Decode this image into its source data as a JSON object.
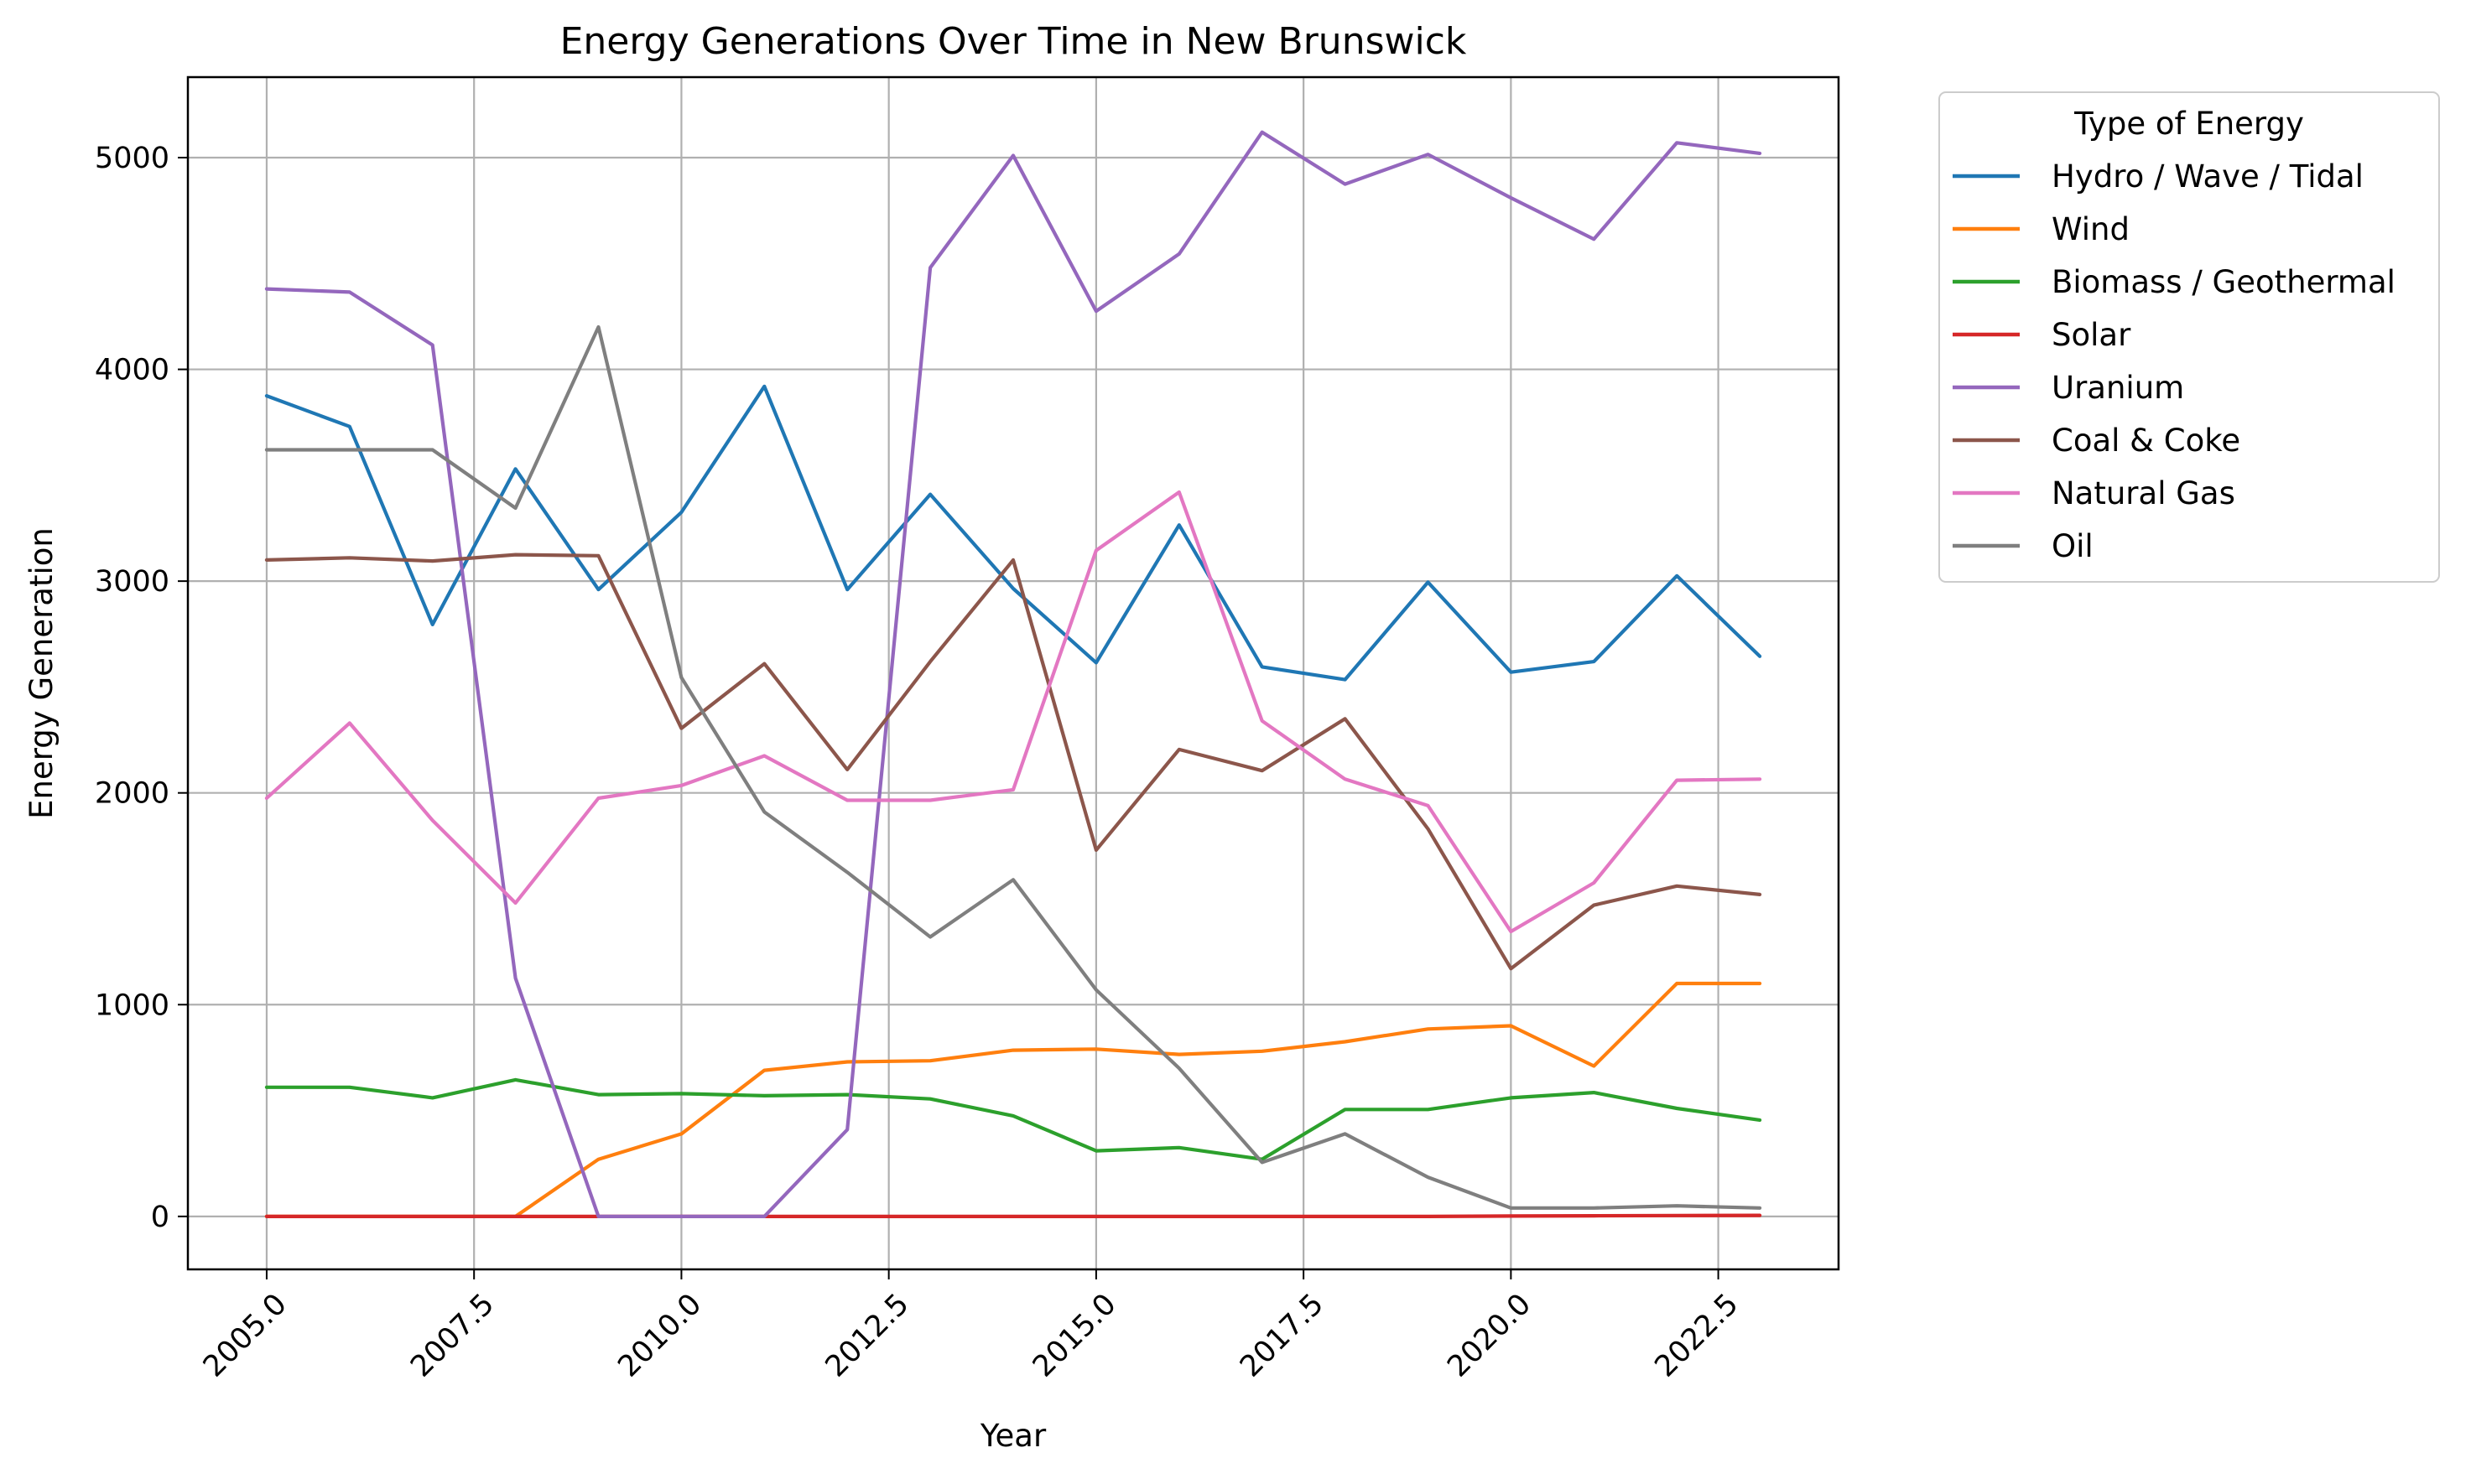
{
  "chart_data": {
    "type": "line",
    "title": "Energy Generations Over Time in New Brunswick",
    "xlabel": "Year",
    "ylabel": "Energy Generation",
    "xlim": [
      2004.05,
      2023.95
    ],
    "ylim": [
      -250,
      5380
    ],
    "x_ticks": [
      2005.0,
      2007.5,
      2010.0,
      2012.5,
      2015.0,
      2017.5,
      2020.0,
      2022.5
    ],
    "x_tick_labels": [
      "2005.0",
      "2007.5",
      "2010.0",
      "2012.5",
      "2015.0",
      "2017.5",
      "2020.0",
      "2022.5"
    ],
    "y_ticks": [
      0,
      1000,
      2000,
      3000,
      4000,
      5000
    ],
    "y_tick_labels": [
      "0",
      "1000",
      "2000",
      "3000",
      "4000",
      "5000"
    ],
    "grid": true,
    "legend_title": "Type of Energy",
    "legend_position": "outside-right-top",
    "x": [
      2005,
      2006,
      2007,
      2008,
      2009,
      2010,
      2011,
      2012,
      2013,
      2014,
      2015,
      2016,
      2017,
      2018,
      2019,
      2020,
      2021,
      2022,
      2023
    ],
    "series": [
      {
        "name": "Hydro / Wave / Tidal",
        "color": "#1f77b4",
        "values": [
          3875,
          3730,
          2795,
          3530,
          2960,
          3325,
          3920,
          2960,
          3410,
          2965,
          2615,
          3265,
          2595,
          2535,
          2995,
          2570,
          2620,
          3025,
          2645
        ]
      },
      {
        "name": "Wind",
        "color": "#ff7f0e",
        "values": [
          0,
          0,
          0,
          0,
          270,
          390,
          690,
          730,
          735,
          785,
          790,
          765,
          780,
          825,
          885,
          900,
          710,
          1100,
          1100
        ]
      },
      {
        "name": "Biomass / Geothermal",
        "color": "#2ca02c",
        "values": [
          610,
          610,
          560,
          645,
          575,
          580,
          570,
          575,
          555,
          475,
          310,
          325,
          270,
          505,
          505,
          560,
          585,
          510,
          455
        ]
      },
      {
        "name": "Solar",
        "color": "#d62728",
        "values": [
          0,
          0,
          0,
          0,
          0,
          0,
          0,
          0,
          0,
          0,
          0,
          0,
          0,
          0,
          0,
          2,
          3,
          4,
          5
        ]
      },
      {
        "name": "Uranium",
        "color": "#9467bd",
        "values": [
          4380,
          4365,
          4115,
          1125,
          0,
          0,
          0,
          410,
          4480,
          5010,
          4275,
          4545,
          5120,
          4875,
          5015,
          4810,
          4615,
          5070,
          5020
        ]
      },
      {
        "name": "Coal & Coke",
        "color": "#8c564b",
        "values": [
          3100,
          3110,
          3095,
          3125,
          3120,
          2305,
          2610,
          2110,
          2620,
          3100,
          1730,
          2205,
          2105,
          2350,
          1830,
          1170,
          1470,
          1560,
          1520
        ]
      },
      {
        "name": "Natural Gas",
        "color": "#e377c2",
        "values": [
          1975,
          2330,
          1870,
          1480,
          1975,
          2035,
          2175,
          1965,
          1965,
          2015,
          3145,
          3420,
          2340,
          2065,
          1940,
          1345,
          1575,
          2060,
          2065
        ]
      },
      {
        "name": "Oil",
        "color": "#7f7f7f",
        "values": [
          3620,
          3620,
          3620,
          3345,
          4200,
          2545,
          1910,
          1625,
          1320,
          1590,
          1070,
          700,
          255,
          390,
          185,
          40,
          40,
          50,
          40
        ]
      }
    ]
  }
}
